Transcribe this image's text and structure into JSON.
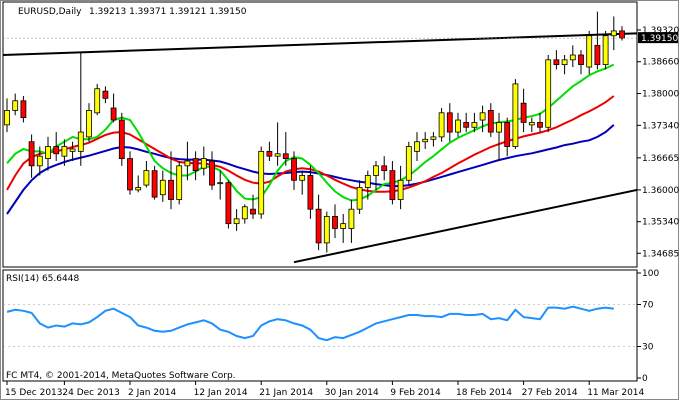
{
  "header": {
    "symbol": "EURUSD,Daily",
    "ohlc": "1.39213 1.39371 1.39121 1.39150"
  },
  "rsi_header": "RSI(14) 65.6448",
  "copyright": "FC MT4, © 2001-2014, MetaQuotes Software Corp.",
  "colors": {
    "bull": "#ffff00",
    "bear": "#ff0000",
    "ma_green": "#00dd00",
    "ma_red": "#ee0000",
    "ma_blue": "#0000bb",
    "rsi_line": "#1e90ff",
    "trendline": "#000000"
  },
  "chart_data": [
    {
      "type": "candlestick",
      "title": "EURUSD,Daily",
      "ylim": [
        1.344,
        1.399
      ],
      "price_ticks": [
        "1.39320",
        "1.38660",
        "1.38000",
        "1.37340",
        "1.36665",
        "1.36000",
        "1.35340",
        "1.34685"
      ],
      "price_tick_values": [
        1.3932,
        1.3866,
        1.38,
        1.3734,
        1.36665,
        1.36,
        1.3534,
        1.34685
      ],
      "current_price_label": "1.39150",
      "current_price": 1.3915,
      "date_labels": [
        "15 Dec 2013",
        "24 Dec 2013",
        "2 Jan 2014",
        "12 Jan 2014",
        "21 Jan 2014",
        "30 Jan 2014",
        "9 Feb 2014",
        "18 Feb 2014",
        "27 Feb 2014",
        "11 Mar 2014"
      ],
      "date_label_bars": [
        0,
        7,
        15,
        23,
        31,
        39,
        47,
        55,
        63,
        71
      ],
      "candles": [
        [
          1.3735,
          1.379,
          1.372,
          1.3765
        ],
        [
          1.3765,
          1.38,
          1.3755,
          1.3785
        ],
        [
          1.3785,
          1.3795,
          1.374,
          1.375
        ],
        [
          1.37,
          1.3715,
          1.3625,
          1.365
        ],
        [
          1.365,
          1.369,
          1.363,
          1.367
        ],
        [
          1.3665,
          1.371,
          1.364,
          1.369
        ],
        [
          1.369,
          1.372,
          1.366,
          1.3675
        ],
        [
          1.367,
          1.3705,
          1.365,
          1.369
        ],
        [
          1.368,
          1.37,
          1.366,
          1.3685
        ],
        [
          1.368,
          1.3885,
          1.365,
          1.372
        ],
        [
          1.371,
          1.378,
          1.37,
          1.3765
        ],
        [
          1.376,
          1.382,
          1.3755,
          1.381
        ],
        [
          1.3805,
          1.3815,
          1.378,
          1.379
        ],
        [
          1.377,
          1.38,
          1.374,
          1.3745
        ],
        [
          1.3745,
          1.376,
          1.365,
          1.3665
        ],
        [
          1.3665,
          1.368,
          1.359,
          1.36
        ],
        [
          1.36,
          1.363,
          1.3595,
          1.3605
        ],
        [
          1.361,
          1.366,
          1.3605,
          1.364
        ],
        [
          1.364,
          1.365,
          1.358,
          1.3585
        ],
        [
          1.359,
          1.364,
          1.3575,
          1.362
        ],
        [
          1.362,
          1.368,
          1.356,
          1.358
        ],
        [
          1.358,
          1.366,
          1.357,
          1.365
        ],
        [
          1.365,
          1.37,
          1.362,
          1.366
        ],
        [
          1.3665,
          1.368,
          1.362,
          1.364
        ],
        [
          1.3645,
          1.369,
          1.363,
          1.3665
        ],
        [
          1.366,
          1.368,
          1.36,
          1.361
        ],
        [
          1.3615,
          1.364,
          1.358,
          1.3615
        ],
        [
          1.3615,
          1.362,
          1.352,
          1.353
        ],
        [
          1.353,
          1.356,
          1.3515,
          1.354
        ],
        [
          1.354,
          1.357,
          1.353,
          1.3565
        ],
        [
          1.356,
          1.359,
          1.354,
          1.355
        ],
        [
          1.355,
          1.369,
          1.354,
          1.368
        ],
        [
          1.368,
          1.37,
          1.366,
          1.367
        ],
        [
          1.367,
          1.374,
          1.365,
          1.3675
        ],
        [
          1.3675,
          1.372,
          1.365,
          1.3665
        ],
        [
          1.3665,
          1.368,
          1.36,
          1.362
        ],
        [
          1.362,
          1.364,
          1.359,
          1.363
        ],
        [
          1.363,
          1.365,
          1.354,
          1.356
        ],
        [
          1.356,
          1.359,
          1.3475,
          1.349
        ],
        [
          1.349,
          1.3555,
          1.347,
          1.3545
        ],
        [
          1.3545,
          1.357,
          1.35,
          1.352
        ],
        [
          1.352,
          1.355,
          1.349,
          1.353
        ],
        [
          1.352,
          1.358,
          1.349,
          1.356
        ],
        [
          1.356,
          1.362,
          1.355,
          1.3605
        ],
        [
          1.3605,
          1.364,
          1.358,
          1.363
        ],
        [
          1.363,
          1.366,
          1.36,
          1.365
        ],
        [
          1.365,
          1.367,
          1.362,
          1.364
        ],
        [
          1.364,
          1.366,
          1.357,
          1.358
        ],
        [
          1.358,
          1.365,
          1.356,
          1.362
        ],
        [
          1.362,
          1.37,
          1.361,
          1.369
        ],
        [
          1.368,
          1.372,
          1.366,
          1.37
        ],
        [
          1.37,
          1.372,
          1.3685,
          1.3705
        ],
        [
          1.3705,
          1.372,
          1.369,
          1.371
        ],
        [
          1.371,
          1.377,
          1.37,
          1.376
        ],
        [
          1.376,
          1.378,
          1.37,
          1.372
        ],
        [
          1.372,
          1.376,
          1.371,
          1.3745
        ],
        [
          1.374,
          1.376,
          1.372,
          1.373
        ],
        [
          1.373,
          1.376,
          1.372,
          1.374
        ],
        [
          1.3745,
          1.3775,
          1.372,
          1.376
        ],
        [
          1.3765,
          1.378,
          1.371,
          1.372
        ],
        [
          1.372,
          1.376,
          1.366,
          1.374
        ],
        [
          1.374,
          1.375,
          1.367,
          1.369
        ],
        [
          1.369,
          1.383,
          1.3685,
          1.382
        ],
        [
          1.378,
          1.381,
          1.372,
          1.374
        ],
        [
          1.3735,
          1.375,
          1.372,
          1.374
        ],
        [
          1.374,
          1.376,
          1.372,
          1.373
        ],
        [
          1.373,
          1.388,
          1.372,
          1.387
        ],
        [
          1.387,
          1.389,
          1.385,
          1.386
        ],
        [
          1.386,
          1.388,
          1.384,
          1.387
        ],
        [
          1.387,
          1.39,
          1.3855,
          1.388
        ],
        [
          1.388,
          1.389,
          1.384,
          1.386
        ],
        [
          1.3855,
          1.393,
          1.384,
          1.392
        ],
        [
          1.39,
          1.397,
          1.385,
          1.386
        ],
        [
          1.386,
          1.393,
          1.385,
          1.392
        ],
        [
          1.392,
          1.396,
          1.389,
          1.393
        ],
        [
          1.393,
          1.394,
          1.391,
          1.3915
        ]
      ],
      "ma_green": [
        1.3655,
        1.3675,
        1.3685,
        1.368,
        1.368,
        1.3675,
        1.369,
        1.37,
        1.371,
        1.3705,
        1.3705,
        1.371,
        1.3725,
        1.3745,
        1.375,
        1.3745,
        1.372,
        1.369,
        1.366,
        1.3645,
        1.3635,
        1.363,
        1.363,
        1.3638,
        1.3648,
        1.3648,
        1.364,
        1.362,
        1.3598,
        1.3582,
        1.358,
        1.3585,
        1.361,
        1.364,
        1.366,
        1.3668,
        1.3665,
        1.3652,
        1.3635,
        1.3615,
        1.3597,
        1.3585,
        1.3578,
        1.358,
        1.3588,
        1.36,
        1.3612,
        1.3615,
        1.362,
        1.363,
        1.3643,
        1.3658,
        1.367,
        1.3684,
        1.3698,
        1.3708,
        1.3716,
        1.3724,
        1.3732,
        1.3738,
        1.374,
        1.3742,
        1.3745,
        1.375,
        1.3753,
        1.3758,
        1.377,
        1.3785,
        1.38,
        1.3815,
        1.3826,
        1.3838,
        1.3846,
        1.3852,
        1.386
      ],
      "ma_red": [
        1.36,
        1.363,
        1.3655,
        1.3668,
        1.3675,
        1.3678,
        1.368,
        1.3684,
        1.3689,
        1.3693,
        1.3698,
        1.3706,
        1.3714,
        1.3719,
        1.372,
        1.3715,
        1.3705,
        1.3695,
        1.3685,
        1.3675,
        1.3665,
        1.3658,
        1.3656,
        1.3655,
        1.3655,
        1.3652,
        1.3648,
        1.364,
        1.363,
        1.3621,
        1.3615,
        1.3613,
        1.3617,
        1.3628,
        1.3638,
        1.3643,
        1.3645,
        1.3643,
        1.3638,
        1.363,
        1.3621,
        1.3613,
        1.3606,
        1.3601,
        1.3598,
        1.3596,
        1.3596,
        1.3597,
        1.36,
        1.3605,
        1.3611,
        1.3618,
        1.3627,
        1.3635,
        1.3645,
        1.3655,
        1.3664,
        1.3673,
        1.3681,
        1.3689,
        1.3695,
        1.3701,
        1.3706,
        1.3711,
        1.3715,
        1.3719,
        1.3724,
        1.373,
        1.3738,
        1.3746,
        1.3755,
        1.3763,
        1.3772,
        1.3782,
        1.3795
      ],
      "ma_blue": [
        1.355,
        1.3575,
        1.36,
        1.362,
        1.3635,
        1.3645,
        1.3652,
        1.3658,
        1.3663,
        1.3667,
        1.3671,
        1.3676,
        1.3681,
        1.3686,
        1.3689,
        1.3688,
        1.3684,
        1.3679,
        1.3675,
        1.367,
        1.3666,
        1.3664,
        1.3663,
        1.3663,
        1.3663,
        1.3661,
        1.3659,
        1.3654,
        1.3648,
        1.3643,
        1.3638,
        1.3634,
        1.3633,
        1.3634,
        1.3635,
        1.3637,
        1.3638,
        1.3637,
        1.3634,
        1.3631,
        1.3627,
        1.3623,
        1.362,
        1.3617,
        1.3615,
        1.3612,
        1.361,
        1.3608,
        1.3608,
        1.361,
        1.3613,
        1.3617,
        1.3622,
        1.3627,
        1.3632,
        1.3637,
        1.3642,
        1.3647,
        1.3652,
        1.3657,
        1.3662,
        1.3666,
        1.367,
        1.3673,
        1.3676,
        1.368,
        1.3684,
        1.3688,
        1.3693,
        1.3696,
        1.37,
        1.3703,
        1.371,
        1.372,
        1.3735
      ],
      "trendline_upper": [
        [
          0,
          1.388
        ],
        [
          77,
          1.3925
        ]
      ],
      "trendline_lower": [
        [
          35,
          1.345
        ],
        [
          77,
          1.36
        ]
      ]
    },
    {
      "type": "line",
      "title": "RSI(14) 65.6448",
      "ylim": [
        0,
        100
      ],
      "levels": [
        70,
        30
      ],
      "tick_labels": [
        "100",
        "70",
        "30",
        "0"
      ],
      "tick_values": [
        100,
        70,
        30,
        0
      ],
      "values": [
        63,
        65,
        64,
        62,
        52,
        48,
        50,
        49,
        52,
        51,
        53,
        58,
        64,
        66,
        62,
        58,
        50,
        48,
        45,
        44,
        45,
        48,
        51,
        53,
        55,
        52,
        46,
        44,
        40,
        38,
        40,
        50,
        54,
        56,
        55,
        52,
        50,
        46,
        38,
        36,
        39,
        38,
        41,
        44,
        48,
        52,
        54,
        56,
        58,
        60,
        60,
        59,
        59,
        58,
        61,
        61,
        60,
        60,
        61,
        56,
        57,
        55,
        65,
        58,
        57,
        56,
        67,
        67,
        66,
        68,
        66,
        64,
        66,
        67,
        66
      ]
    }
  ]
}
